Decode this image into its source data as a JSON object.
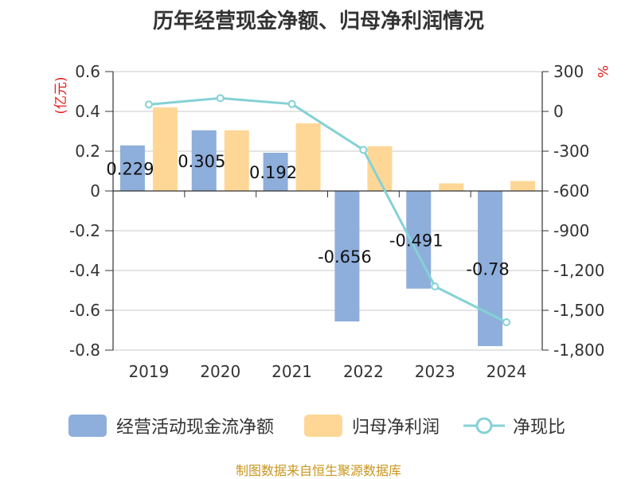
{
  "title": "历年经营现金净额、归母净利润情况",
  "source": "制图数据来自恒生聚源数据库",
  "colors": {
    "cashflow": "#8eaedb",
    "profit": "#fed796",
    "ratio": "#84d1d6",
    "grid": "#c8c8c8",
    "axis": "#333333"
  },
  "legend": {
    "cashflow": "经营活动现金流净额",
    "profit": "归母净利润",
    "ratio": "净现比"
  },
  "chart_data": {
    "type": "bar",
    "title": "历年经营现金净额、归母净利润情况",
    "categories": [
      "2019",
      "2020",
      "2021",
      "2022",
      "2023",
      "2024"
    ],
    "left_axis": {
      "unit": "(亿元)",
      "ylim": [
        -0.8,
        0.6
      ],
      "ticks": [
        "0.6",
        "0.4",
        "0.2",
        "0",
        "-0.2",
        "-0.4",
        "-0.6",
        "-0.8"
      ],
      "tick_values": [
        0.6,
        0.4,
        0.2,
        0,
        -0.2,
        -0.4,
        -0.6,
        -0.8
      ]
    },
    "right_axis": {
      "unit": "%",
      "ylim": [
        -1800,
        300
      ],
      "ticks": [
        "300",
        "0",
        "-300",
        "-600",
        "-900",
        "-1,200",
        "-1,500",
        "-1,800"
      ],
      "tick_values": [
        300,
        0,
        -300,
        -600,
        -900,
        -1200,
        -1500,
        -1800
      ]
    },
    "series": [
      {
        "name": "经营活动现金流净额",
        "type": "bar",
        "axis": "left",
        "values": [
          0.229,
          0.305,
          0.192,
          -0.656,
          -0.491,
          -0.78
        ],
        "labels": [
          "0.229",
          "0.305",
          "0.192",
          "-0.656",
          "-0.491",
          "-0.78"
        ]
      },
      {
        "name": "归母净利润",
        "type": "bar",
        "axis": "left",
        "values": [
          0.42,
          0.305,
          0.34,
          0.225,
          0.038,
          0.05
        ]
      },
      {
        "name": "净现比",
        "type": "line",
        "axis": "right",
        "values": [
          52,
          100,
          56,
          -290,
          -1320,
          -1590
        ]
      }
    ],
    "grid": true,
    "legend_position": "bottom"
  }
}
